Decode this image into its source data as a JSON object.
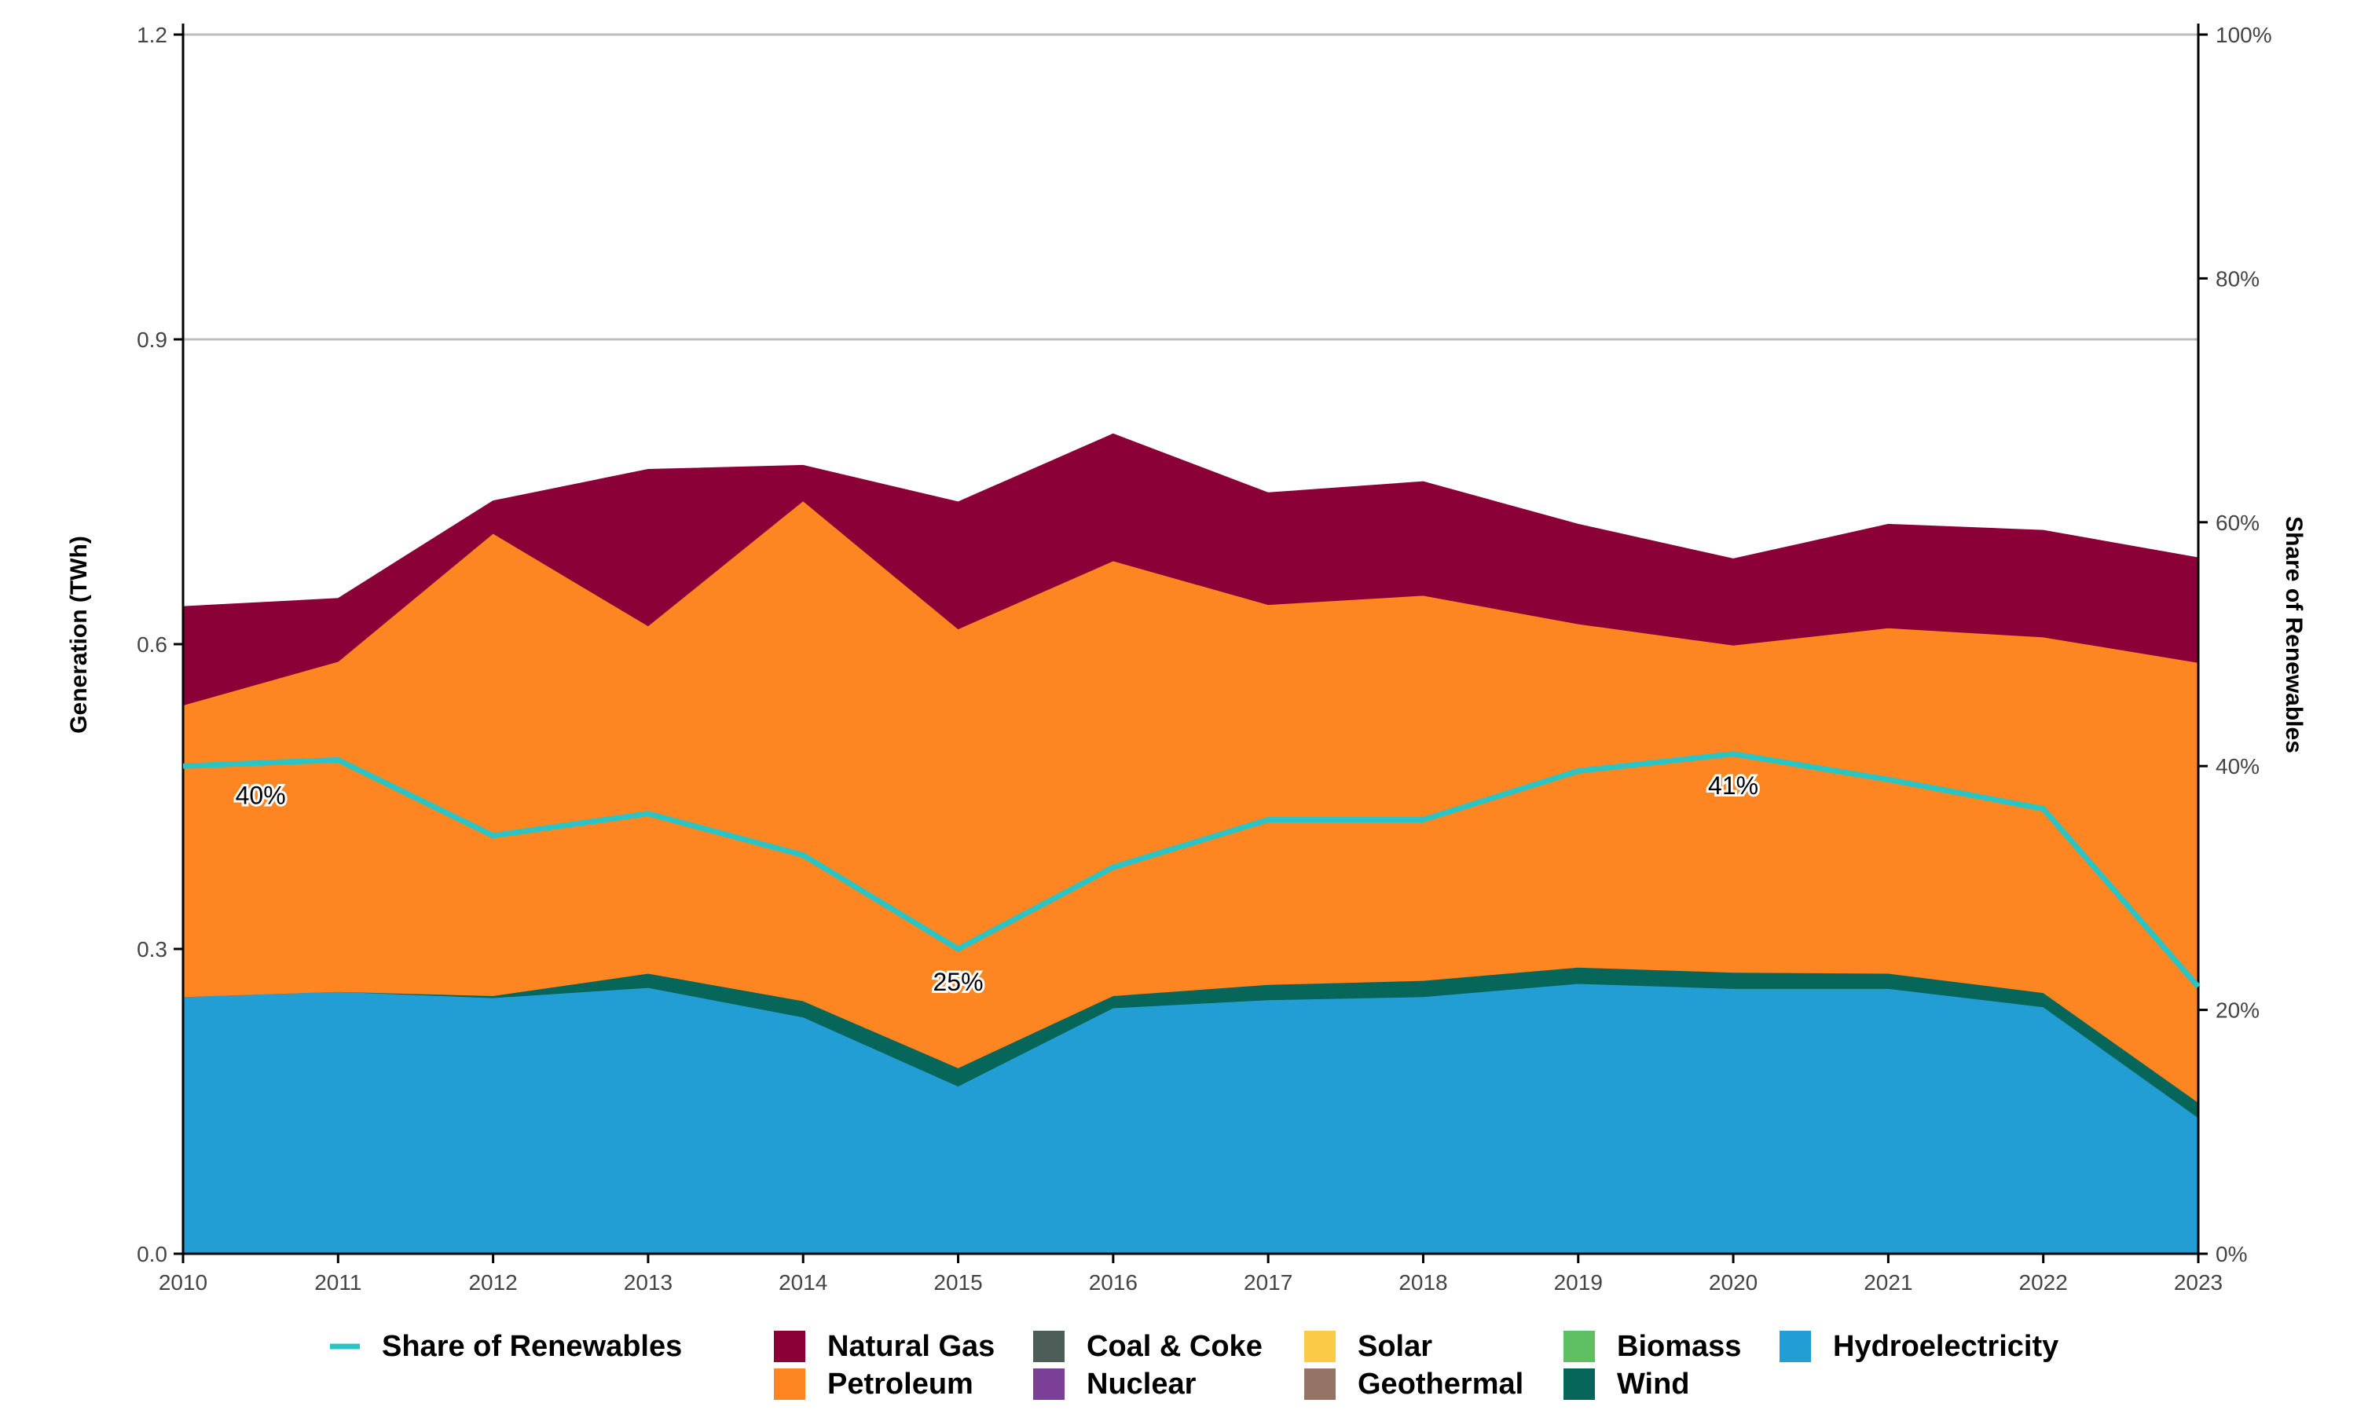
{
  "chart_data": {
    "type": "area",
    "title": "",
    "x": [
      2010,
      2011,
      2012,
      2013,
      2014,
      2015,
      2016,
      2017,
      2018,
      2019,
      2020,
      2021,
      2022,
      2023
    ],
    "xlabel": "",
    "ylabel": "Generation (TWh)",
    "ylabel_right": "Share of Renewables",
    "ylim": [
      0,
      1.2
    ],
    "ylim_right": [
      0,
      100
    ],
    "yticks": [
      "0.0",
      "0.3",
      "0.6",
      "0.9",
      "1.2"
    ],
    "yticks_right": [
      "0%",
      "20%",
      "40%",
      "60%",
      "80%",
      "100%"
    ],
    "grid": true,
    "legend_position": "bottom",
    "series": [
      {
        "name": "Hydroelectricity",
        "color": "#229ed4",
        "values": [
          0.253,
          0.258,
          0.252,
          0.262,
          0.233,
          0.165,
          0.242,
          0.25,
          0.253,
          0.266,
          0.261,
          0.261,
          0.243,
          0.134
        ]
      },
      {
        "name": "Wind",
        "color": "#07665a",
        "values": [
          0.0,
          0.0,
          0.002,
          0.014,
          0.016,
          0.018,
          0.012,
          0.015,
          0.016,
          0.016,
          0.016,
          0.015,
          0.014,
          0.015
        ]
      },
      {
        "name": "Biomass",
        "color": "#5ec063",
        "values": [
          0,
          0,
          0,
          0,
          0,
          0,
          0,
          0,
          0,
          0,
          0,
          0,
          0,
          0
        ]
      },
      {
        "name": "Geothermal",
        "color": "#957466",
        "values": [
          0,
          0,
          0,
          0,
          0,
          0,
          0,
          0,
          0,
          0,
          0,
          0,
          0,
          0
        ]
      },
      {
        "name": "Solar",
        "color": "#fbcb47",
        "values": [
          0,
          0,
          0,
          0,
          0,
          0,
          0,
          0,
          0,
          0,
          0,
          0,
          0,
          0
        ]
      },
      {
        "name": "Nuclear",
        "color": "#7c3f98",
        "values": [
          0,
          0,
          0,
          0,
          0,
          0,
          0,
          0,
          0,
          0,
          0,
          0,
          0,
          0
        ]
      },
      {
        "name": "Coal & Coke",
        "color": "#4d5e59",
        "values": [
          0,
          0,
          0,
          0,
          0,
          0,
          0,
          0,
          0,
          0,
          0,
          0,
          0,
          0
        ]
      },
      {
        "name": "Petroleum",
        "color": "#fd8522",
        "values": [
          0.287,
          0.325,
          0.455,
          0.342,
          0.492,
          0.432,
          0.428,
          0.374,
          0.379,
          0.338,
          0.322,
          0.34,
          0.35,
          0.433
        ]
      },
      {
        "name": "Natural Gas",
        "color": "#8a0037",
        "values": [
          0.097,
          0.062,
          0.032,
          0.154,
          0.035,
          0.125,
          0.125,
          0.11,
          0.112,
          0.098,
          0.085,
          0.102,
          0.105,
          0.103
        ]
      }
    ],
    "line_series": {
      "name": "Share of Renewables",
      "color": "#2bc4c4",
      "axis": "right",
      "values": [
        40,
        40.5,
        34.3,
        36.1,
        32.7,
        25,
        31.7,
        35.6,
        35.6,
        39.6,
        41,
        38.9,
        36.5,
        21.9
      ]
    },
    "annotations": [
      {
        "text": "40%",
        "x": 2010.5,
        "y": 37.6
      },
      {
        "text": "25%",
        "x": 2015,
        "y": 22.3
      },
      {
        "text": "41%",
        "x": 2020,
        "y": 38.4
      }
    ],
    "legend": [
      {
        "label": "Share of Renewables",
        "kind": "line",
        "color": "#2bc4c4"
      },
      {
        "label": "Natural Gas",
        "kind": "box",
        "color": "#8a0037"
      },
      {
        "label": "Petroleum",
        "kind": "box",
        "color": "#fd8522"
      },
      {
        "label": "Coal & Coke",
        "kind": "box",
        "color": "#4d5e59"
      },
      {
        "label": "Nuclear",
        "kind": "box",
        "color": "#7c3f98"
      },
      {
        "label": "Solar",
        "kind": "box",
        "color": "#fbcb47"
      },
      {
        "label": "Geothermal",
        "kind": "box",
        "color": "#957466"
      },
      {
        "label": "Biomass",
        "kind": "box",
        "color": "#5ec063"
      },
      {
        "label": "Wind",
        "kind": "box",
        "color": "#07665a"
      },
      {
        "label": "Hydroelectricity",
        "kind": "box",
        "color": "#229ed4"
      }
    ]
  }
}
